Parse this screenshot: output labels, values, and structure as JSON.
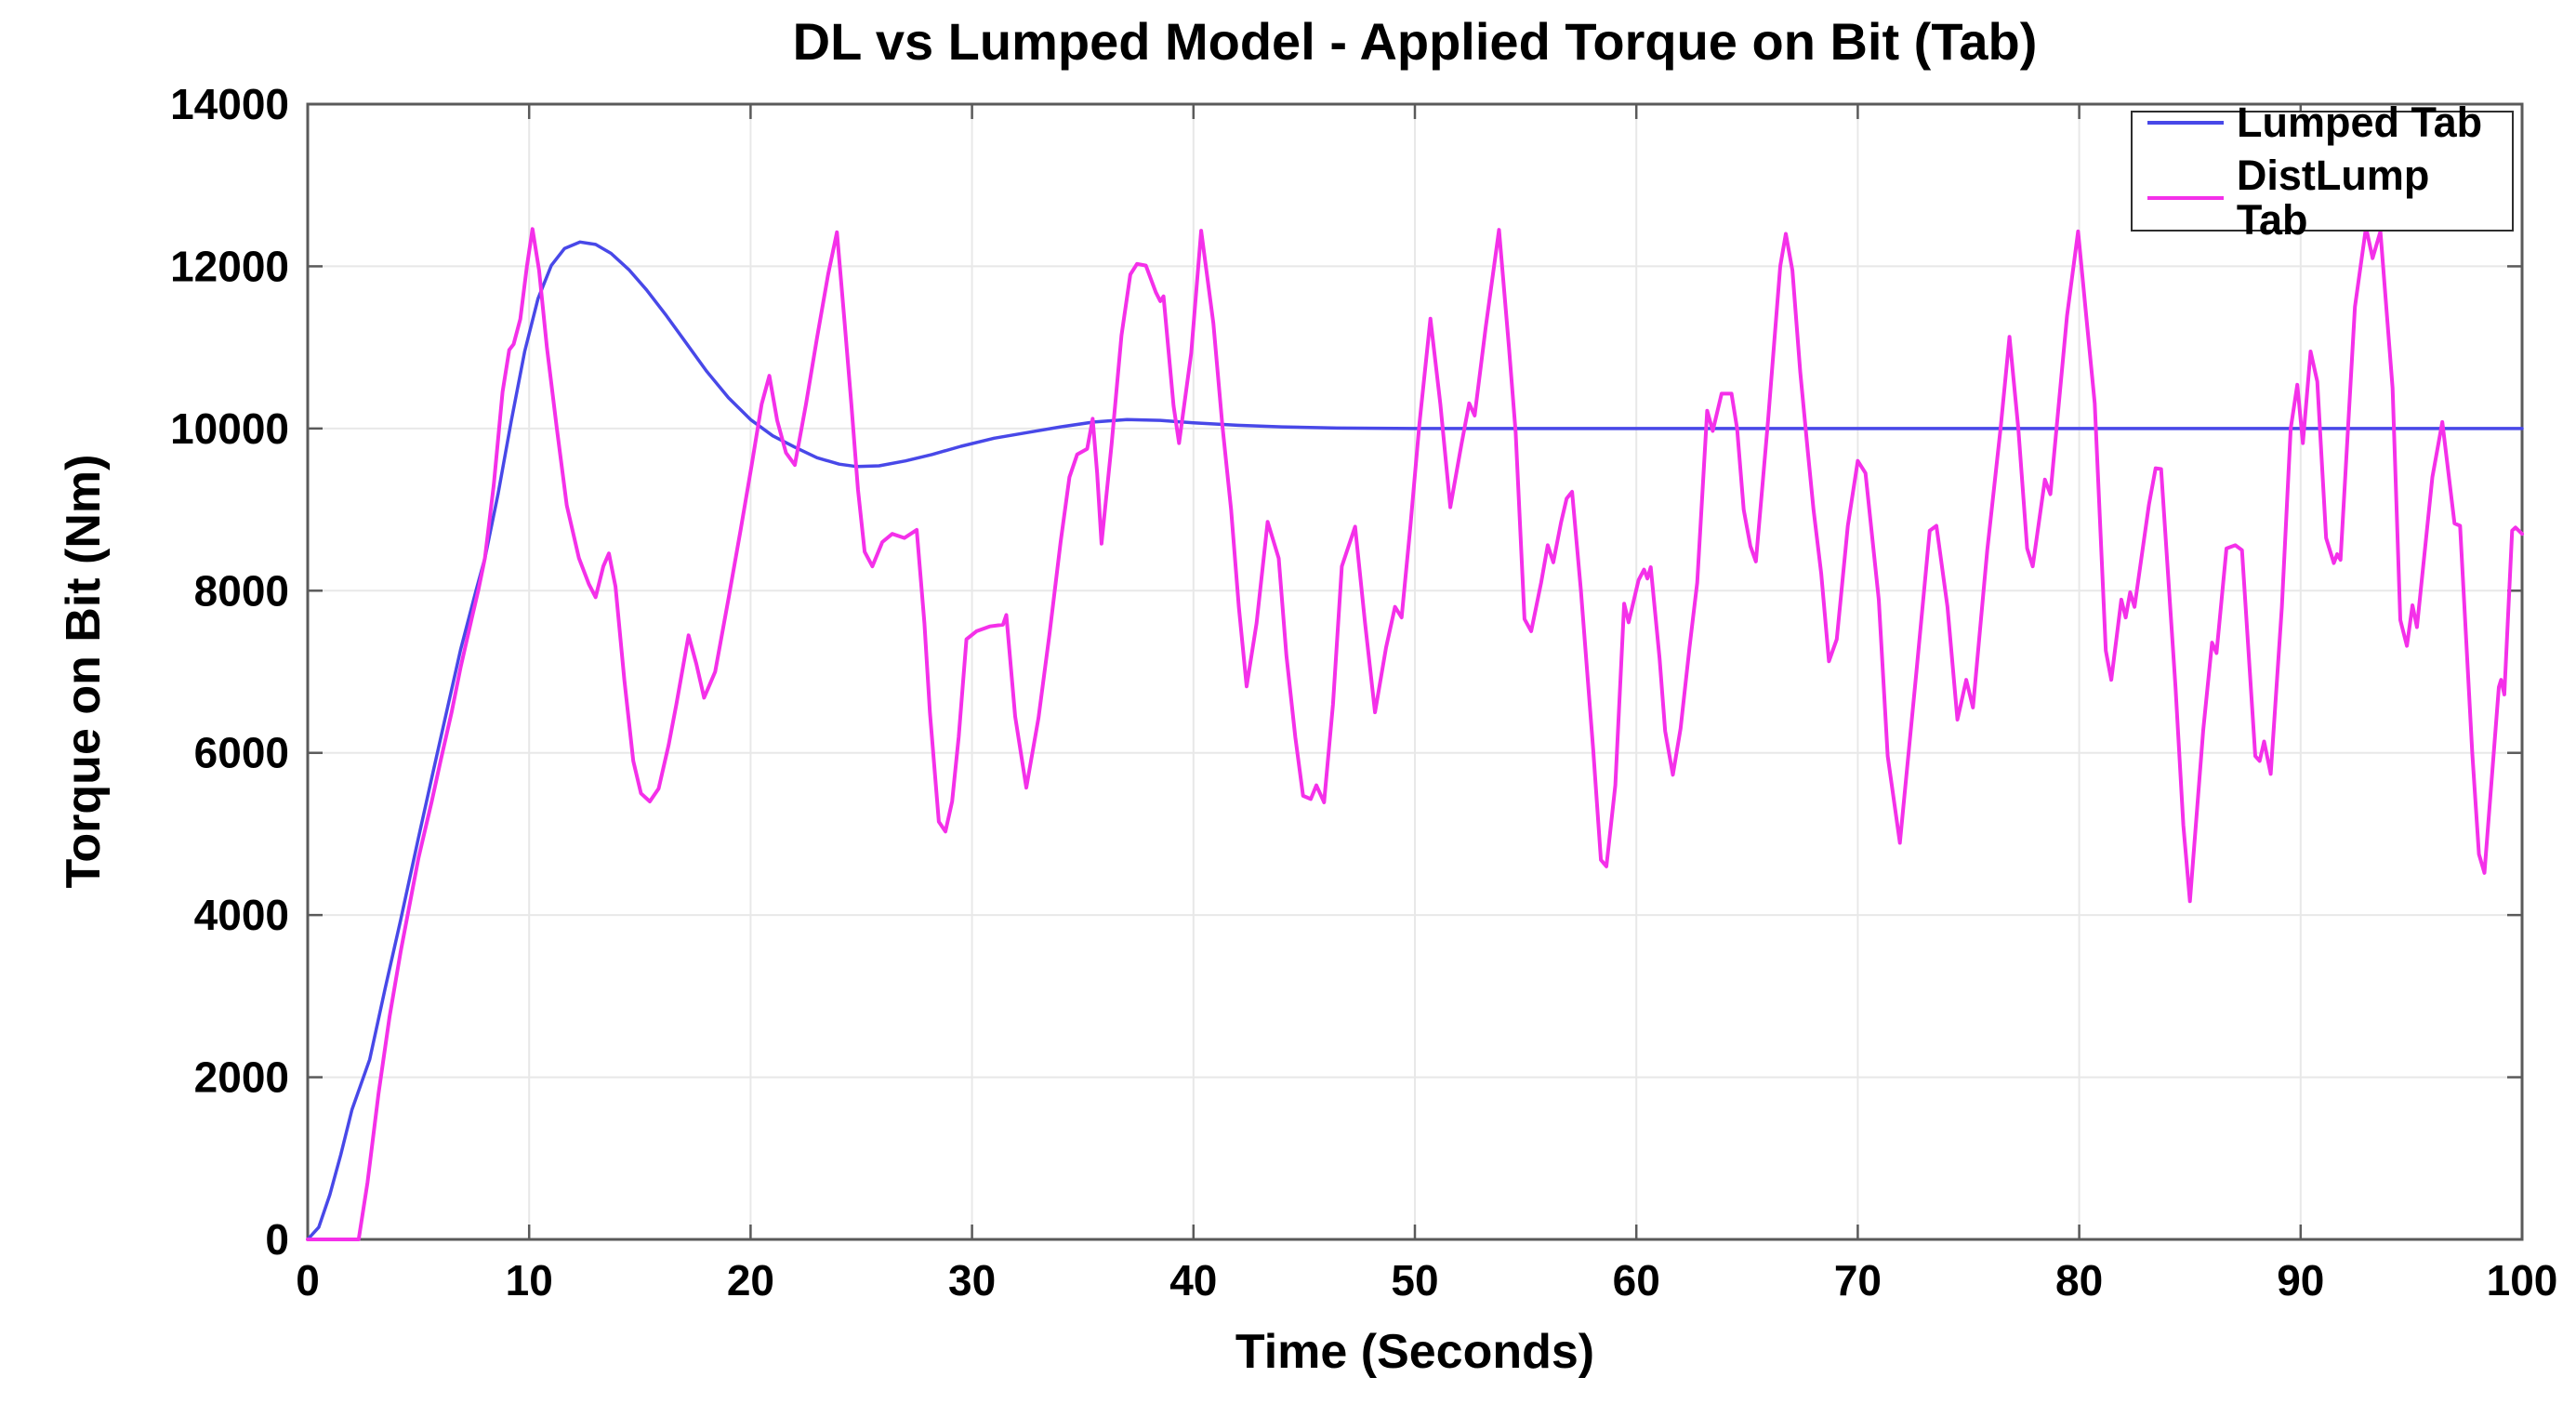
{
  "figure": {
    "title": "DL vs Lumped Model - Applied Torque on Bit (Tab)"
  },
  "chart_data": {
    "type": "line",
    "title": "DL vs Lumped Model - Applied Torque on Bit (Tab)",
    "xlabel": "Time (Seconds)",
    "ylabel": "Torque on Bit (Nm)",
    "xlim": [
      0,
      100
    ],
    "ylim": [
      0,
      14000
    ],
    "xticks": [
      0,
      10,
      20,
      30,
      40,
      50,
      60,
      70,
      80,
      90,
      100
    ],
    "yticks": [
      0,
      2000,
      4000,
      6000,
      8000,
      10000,
      12000,
      14000
    ],
    "grid": true,
    "legend_position": "top-right",
    "colors": {
      "grid": "#e8e8e8",
      "frame": "#5a5a5a",
      "tick_text": "#000000",
      "background": "#ffffff"
    },
    "series": [
      {
        "name": "Lumped Tab",
        "color": "#4848e8",
        "width": 3.5,
        "points": [
          [
            0,
            0
          ],
          [
            0.5,
            150
          ],
          [
            1,
            550
          ],
          [
            1.5,
            1050
          ],
          [
            2,
            1600
          ],
          [
            2.8,
            2220
          ],
          [
            3.5,
            3100
          ],
          [
            4.2,
            3940
          ],
          [
            5,
            4950
          ],
          [
            5.6,
            5690
          ],
          [
            6.2,
            6420
          ],
          [
            6.9,
            7270
          ],
          [
            7.6,
            8000
          ],
          [
            8,
            8400
          ],
          [
            8.6,
            9200
          ],
          [
            9.2,
            10100
          ],
          [
            9.8,
            10950
          ],
          [
            10.4,
            11600
          ],
          [
            11,
            12010
          ],
          [
            11.6,
            12220
          ],
          [
            12.3,
            12300
          ],
          [
            13,
            12270
          ],
          [
            13.7,
            12160
          ],
          [
            14.5,
            11960
          ],
          [
            15.3,
            11710
          ],
          [
            16.2,
            11390
          ],
          [
            17,
            11090
          ],
          [
            18,
            10710
          ],
          [
            19,
            10380
          ],
          [
            20,
            10110
          ],
          [
            21,
            9910
          ],
          [
            22,
            9770
          ],
          [
            23,
            9640
          ],
          [
            24,
            9560
          ],
          [
            24.8,
            9530
          ],
          [
            25.8,
            9540
          ],
          [
            27,
            9600
          ],
          [
            28.2,
            9680
          ],
          [
            29.5,
            9780
          ],
          [
            31,
            9880
          ],
          [
            32.5,
            9950
          ],
          [
            34,
            10020
          ],
          [
            35.5,
            10080
          ],
          [
            37,
            10110
          ],
          [
            38.5,
            10100
          ],
          [
            40,
            10070
          ],
          [
            42,
            10040
          ],
          [
            44,
            10020
          ],
          [
            46.5,
            10005
          ],
          [
            50,
            10000
          ],
          [
            60,
            10000
          ],
          [
            75,
            10000
          ],
          [
            100,
            10000
          ]
        ]
      },
      {
        "name": "DistLump Tab",
        "color": "#f430e9",
        "width": 4,
        "points": [
          [
            0,
            0
          ],
          [
            2.3,
            0
          ],
          [
            2.7,
            700
          ],
          [
            3.2,
            1800
          ],
          [
            3.7,
            2750
          ],
          [
            4.2,
            3550
          ],
          [
            5,
            4700
          ],
          [
            5.6,
            5400
          ],
          [
            6,
            5900
          ],
          [
            6.5,
            6500
          ],
          [
            6.9,
            7050
          ],
          [
            7.4,
            7650
          ],
          [
            7.7,
            8000
          ],
          [
            8,
            8400
          ],
          [
            8.4,
            9300
          ],
          [
            8.8,
            10450
          ],
          [
            9.1,
            10970
          ],
          [
            9.3,
            11040
          ],
          [
            9.6,
            11350
          ],
          [
            9.9,
            12000
          ],
          [
            10.15,
            12460
          ],
          [
            10.45,
            11950
          ],
          [
            10.8,
            11000
          ],
          [
            11.25,
            10000
          ],
          [
            11.7,
            9050
          ],
          [
            12.25,
            8400
          ],
          [
            12.7,
            8080
          ],
          [
            13,
            7920
          ],
          [
            13.35,
            8300
          ],
          [
            13.6,
            8460
          ],
          [
            13.9,
            8050
          ],
          [
            14.3,
            6900
          ],
          [
            14.7,
            5900
          ],
          [
            15.05,
            5500
          ],
          [
            15.45,
            5400
          ],
          [
            15.85,
            5560
          ],
          [
            16.3,
            6100
          ],
          [
            16.65,
            6600
          ],
          [
            17.2,
            7450
          ],
          [
            17.55,
            7100
          ],
          [
            17.9,
            6680
          ],
          [
            18.4,
            7000
          ],
          [
            19,
            7900
          ],
          [
            19.55,
            8750
          ],
          [
            20.05,
            9550
          ],
          [
            20.5,
            10300
          ],
          [
            20.85,
            10650
          ],
          [
            21.2,
            10100
          ],
          [
            21.6,
            9700
          ],
          [
            22,
            9550
          ],
          [
            22.5,
            10300
          ],
          [
            23,
            11120
          ],
          [
            23.5,
            11900
          ],
          [
            23.9,
            12420
          ],
          [
            24.25,
            11300
          ],
          [
            24.55,
            10300
          ],
          [
            24.85,
            9250
          ],
          [
            25.15,
            8480
          ],
          [
            25.5,
            8300
          ],
          [
            25.95,
            8600
          ],
          [
            26.4,
            8700
          ],
          [
            26.95,
            8650
          ],
          [
            27.5,
            8750
          ],
          [
            27.85,
            7600
          ],
          [
            28.1,
            6500
          ],
          [
            28.5,
            5150
          ],
          [
            28.8,
            5030
          ],
          [
            29.1,
            5400
          ],
          [
            29.4,
            6200
          ],
          [
            29.75,
            7400
          ],
          [
            30.2,
            7500
          ],
          [
            30.8,
            7560
          ],
          [
            31.4,
            7580
          ],
          [
            31.55,
            7700
          ],
          [
            31.95,
            6450
          ],
          [
            32.45,
            5570
          ],
          [
            33,
            6430
          ],
          [
            33.5,
            7470
          ],
          [
            34,
            8600
          ],
          [
            34.4,
            9400
          ],
          [
            34.75,
            9680
          ],
          [
            35.2,
            9750
          ],
          [
            35.45,
            10120
          ],
          [
            35.65,
            9450
          ],
          [
            35.85,
            8580
          ],
          [
            36.3,
            9800
          ],
          [
            36.75,
            11150
          ],
          [
            37.15,
            11900
          ],
          [
            37.45,
            12030
          ],
          [
            37.85,
            12010
          ],
          [
            38.3,
            11680
          ],
          [
            38.5,
            11570
          ],
          [
            38.65,
            11630
          ],
          [
            39.1,
            10280
          ],
          [
            39.35,
            9820
          ],
          [
            39.9,
            10930
          ],
          [
            40.35,
            12440
          ],
          [
            40.9,
            11300
          ],
          [
            41.3,
            10050
          ],
          [
            41.7,
            9000
          ],
          [
            42.05,
            7800
          ],
          [
            42.4,
            6820
          ],
          [
            42.85,
            7600
          ],
          [
            43.35,
            8850
          ],
          [
            43.85,
            8400
          ],
          [
            44.2,
            7200
          ],
          [
            44.6,
            6190
          ],
          [
            44.95,
            5470
          ],
          [
            45.3,
            5430
          ],
          [
            45.55,
            5600
          ],
          [
            45.9,
            5390
          ],
          [
            46.3,
            6600
          ],
          [
            46.7,
            8300
          ],
          [
            47.3,
            8790
          ],
          [
            47.75,
            7600
          ],
          [
            48.2,
            6500
          ],
          [
            48.7,
            7300
          ],
          [
            49.1,
            7800
          ],
          [
            49.4,
            7670
          ],
          [
            49.8,
            8800
          ],
          [
            50.2,
            10050
          ],
          [
            50.7,
            11355
          ],
          [
            51.15,
            10300
          ],
          [
            51.6,
            9030
          ],
          [
            52.1,
            9800
          ],
          [
            52.45,
            10310
          ],
          [
            52.7,
            10160
          ],
          [
            53.2,
            11250
          ],
          [
            53.8,
            12450
          ],
          [
            54.25,
            11000
          ],
          [
            54.55,
            9950
          ],
          [
            54.95,
            7650
          ],
          [
            55.25,
            7500
          ],
          [
            55.7,
            8100
          ],
          [
            56,
            8560
          ],
          [
            56.25,
            8350
          ],
          [
            56.6,
            8840
          ],
          [
            56.85,
            9135
          ],
          [
            57.1,
            9220
          ],
          [
            57.5,
            8000
          ],
          [
            58.05,
            6040
          ],
          [
            58.4,
            4680
          ],
          [
            58.65,
            4600
          ],
          [
            59.05,
            5600
          ],
          [
            59.45,
            7840
          ],
          [
            59.65,
            7610
          ],
          [
            60.1,
            8130
          ],
          [
            60.35,
            8260
          ],
          [
            60.5,
            8150
          ],
          [
            60.65,
            8290
          ],
          [
            61.05,
            7165
          ],
          [
            61.3,
            6270
          ],
          [
            61.65,
            5730
          ],
          [
            62,
            6300
          ],
          [
            62.4,
            7300
          ],
          [
            62.75,
            8100
          ],
          [
            63.2,
            10220
          ],
          [
            63.45,
            9970
          ],
          [
            63.85,
            10430
          ],
          [
            64.3,
            10430
          ],
          [
            64.55,
            10000
          ],
          [
            64.85,
            9000
          ],
          [
            65.15,
            8550
          ],
          [
            65.4,
            8360
          ],
          [
            65.95,
            10100
          ],
          [
            66.5,
            12000
          ],
          [
            66.75,
            12400
          ],
          [
            67.05,
            11950
          ],
          [
            67.4,
            10700
          ],
          [
            67.75,
            9700
          ],
          [
            68,
            9000
          ],
          [
            68.35,
            8210
          ],
          [
            68.7,
            7130
          ],
          [
            69.05,
            7400
          ],
          [
            69.55,
            8800
          ],
          [
            70,
            9600
          ],
          [
            70.35,
            9450
          ],
          [
            70.95,
            7890
          ],
          [
            71.35,
            5960
          ],
          [
            71.9,
            4890
          ],
          [
            72.65,
            7000
          ],
          [
            73.25,
            8740
          ],
          [
            73.55,
            8800
          ],
          [
            74.05,
            7800
          ],
          [
            74.5,
            6410
          ],
          [
            74.9,
            6900
          ],
          [
            75.2,
            6560
          ],
          [
            75.85,
            8500
          ],
          [
            76.45,
            10000
          ],
          [
            76.85,
            11130
          ],
          [
            77.25,
            10000
          ],
          [
            77.65,
            8520
          ],
          [
            77.9,
            8300
          ],
          [
            78.45,
            9370
          ],
          [
            78.7,
            9190
          ],
          [
            79.45,
            11390
          ],
          [
            79.95,
            12430
          ],
          [
            80.35,
            11300
          ],
          [
            80.7,
            10310
          ],
          [
            81.2,
            7260
          ],
          [
            81.45,
            6900
          ],
          [
            81.9,
            7890
          ],
          [
            82.1,
            7670
          ],
          [
            82.3,
            7980
          ],
          [
            82.5,
            7800
          ],
          [
            83.15,
            9060
          ],
          [
            83.45,
            9510
          ],
          [
            83.7,
            9500
          ],
          [
            84.35,
            6810
          ],
          [
            84.7,
            5110
          ],
          [
            85,
            4170
          ],
          [
            85.6,
            6280
          ],
          [
            86,
            7360
          ],
          [
            86.2,
            7230
          ],
          [
            86.65,
            8520
          ],
          [
            87.05,
            8560
          ],
          [
            87.35,
            8500
          ],
          [
            87.95,
            5960
          ],
          [
            88.15,
            5900
          ],
          [
            88.35,
            6140
          ],
          [
            88.65,
            5740
          ],
          [
            89.15,
            7800
          ],
          [
            89.55,
            10000
          ],
          [
            89.85,
            10540
          ],
          [
            90.1,
            9820
          ],
          [
            90.45,
            10950
          ],
          [
            90.75,
            10580
          ],
          [
            91.15,
            8650
          ],
          [
            91.5,
            8340
          ],
          [
            91.65,
            8450
          ],
          [
            91.8,
            8380
          ],
          [
            92.45,
            11500
          ],
          [
            92.95,
            12480
          ],
          [
            93.25,
            12100
          ],
          [
            93.6,
            12430
          ],
          [
            94.15,
            10500
          ],
          [
            94.5,
            7640
          ],
          [
            94.8,
            7320
          ],
          [
            95.05,
            7820
          ],
          [
            95.25,
            7550
          ],
          [
            95.95,
            9400
          ],
          [
            96.4,
            10080
          ],
          [
            96.95,
            8830
          ],
          [
            97.2,
            8800
          ],
          [
            97.75,
            6000
          ],
          [
            98.05,
            4750
          ],
          [
            98.3,
            4520
          ],
          [
            98.95,
            6810
          ],
          [
            99.05,
            6900
          ],
          [
            99.2,
            6720
          ],
          [
            99.55,
            8740
          ],
          [
            99.7,
            8780
          ],
          [
            100,
            8700
          ]
        ]
      }
    ]
  }
}
